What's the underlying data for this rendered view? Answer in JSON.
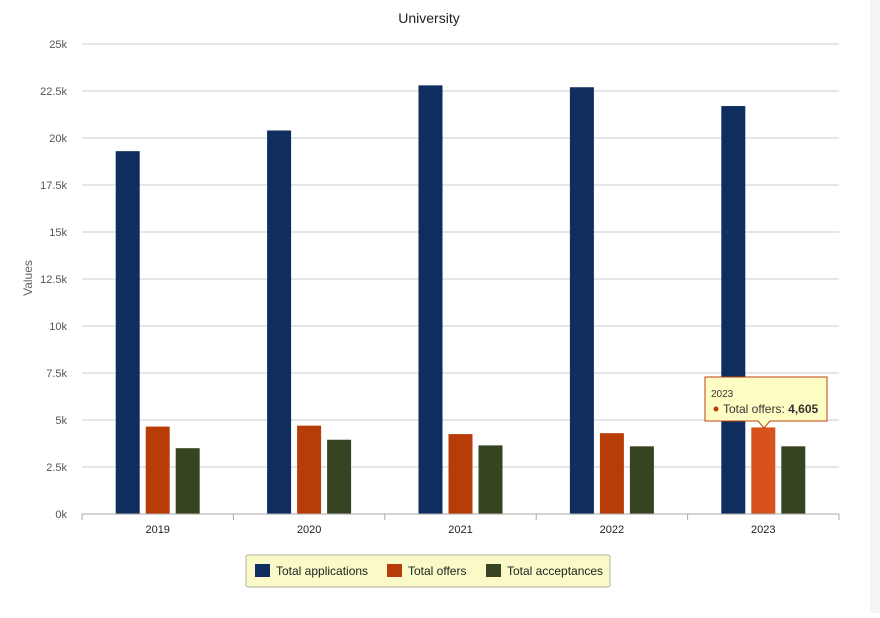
{
  "chart_data": {
    "type": "bar",
    "title": "University",
    "xlabel": "",
    "ylabel": "Values",
    "ylim": [
      0,
      25000
    ],
    "yticks": [
      "0k",
      "2.5k",
      "5k",
      "7.5k",
      "10k",
      "12.5k",
      "15k",
      "17.5k",
      "20k",
      "22.5k",
      "25k"
    ],
    "categories": [
      "2019",
      "2020",
      "2021",
      "2022",
      "2023"
    ],
    "grid": true,
    "legend_position": "bottom-center",
    "series": [
      {
        "name": "Total applications",
        "color": "#0f2d5e",
        "values": [
          19300,
          20400,
          22800,
          22700,
          21700
        ]
      },
      {
        "name": "Total offers",
        "color": "#b83c08",
        "values": [
          4650,
          4700,
          4250,
          4300,
          4605
        ]
      },
      {
        "name": "Total acceptances",
        "color": "#374421",
        "values": [
          3500,
          3950,
          3650,
          3600,
          3600
        ]
      }
    ]
  },
  "tooltip": {
    "category": "2023",
    "series_label": "Total offers",
    "value_text": "4,605",
    "highlight_color": "#d8521b"
  }
}
